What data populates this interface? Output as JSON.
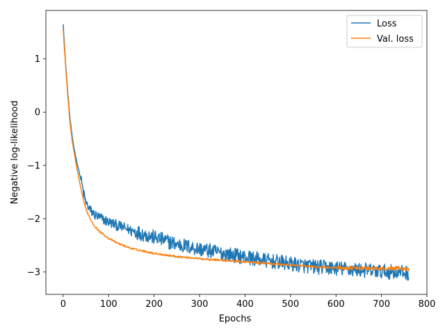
{
  "chart_data": {
    "type": "line",
    "title": "",
    "xlabel": "Epochs",
    "ylabel": "Negative log-likelihood",
    "xlim": [
      -38,
      800
    ],
    "ylim": [
      -3.42,
      1.91
    ],
    "xticks": [
      0,
      100,
      200,
      300,
      400,
      500,
      600,
      700,
      800
    ],
    "yticks": [
      1,
      0,
      -1,
      -2,
      -3
    ],
    "legend_position": "top-right",
    "grid": false,
    "series": [
      {
        "name": "Loss",
        "color": "#1f77b4",
        "noisy": true,
        "x": [
          0,
          5,
          10,
          15,
          20,
          25,
          30,
          35,
          40,
          45,
          50,
          60,
          70,
          80,
          100,
          120,
          150,
          200,
          250,
          300,
          350,
          400,
          450,
          500,
          550,
          600,
          650,
          700,
          730,
          760
        ],
        "y": [
          1.67,
          0.95,
          0.38,
          -0.12,
          -0.48,
          -0.72,
          -0.93,
          -1.12,
          -1.3,
          -1.53,
          -1.7,
          -1.85,
          -1.93,
          -1.98,
          -2.06,
          -2.13,
          -2.22,
          -2.35,
          -2.48,
          -2.57,
          -2.65,
          -2.72,
          -2.79,
          -2.85,
          -2.9,
          -2.93,
          -2.96,
          -2.99,
          -3.0,
          -3.02
        ]
      },
      {
        "name": "Val. loss",
        "color": "#ff7f0e",
        "noisy": false,
        "x": [
          0,
          5,
          10,
          15,
          20,
          25,
          30,
          35,
          40,
          45,
          50,
          60,
          70,
          80,
          100,
          120,
          150,
          200,
          250,
          300,
          350,
          400,
          450,
          500,
          550,
          600,
          650,
          700,
          730,
          760
        ],
        "y": [
          1.55,
          0.9,
          0.32,
          -0.2,
          -0.55,
          -0.8,
          -1.05,
          -1.27,
          -1.47,
          -1.66,
          -1.82,
          -2.01,
          -2.15,
          -2.24,
          -2.37,
          -2.46,
          -2.56,
          -2.65,
          -2.71,
          -2.75,
          -2.78,
          -2.81,
          -2.84,
          -2.87,
          -2.9,
          -2.92,
          -2.93,
          -2.94,
          -2.93,
          -2.96
        ]
      }
    ]
  }
}
